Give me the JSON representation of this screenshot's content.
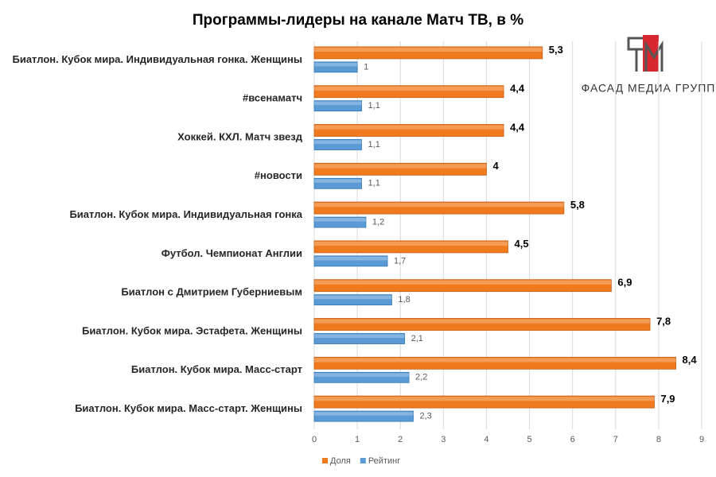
{
  "chart_data": {
    "type": "hbar",
    "title": "Программы-лидеры на канале Матч ТВ, в %",
    "logo": "ФАСАД МЕДИА ГРУПП",
    "categories": [
      "Биатлон. Кубок мира. Индивидуальная гонка. Женщины",
      "#всенаматч",
      "Хоккей. КХЛ. Матч звезд",
      "#новости",
      "Биатлон. Кубок мира. Индивидуальная гонка",
      "Футбол. Чемпионат Англии",
      "Биатлон с Дмитрием Губерниевым",
      "Биатлон. Кубок мира. Эстафета. Женщины",
      "Биатлон. Кубок мира. Масс-старт",
      "Биатлон. Кубок мира. Масс-старт. Женщины"
    ],
    "series": [
      {
        "name": "Доля",
        "color": "#f07a1e",
        "values": [
          5.3,
          4.4,
          4.4,
          4,
          5.8,
          4.5,
          6.9,
          7.8,
          8.4,
          7.9
        ],
        "value_labels": [
          "5,3",
          "4,4",
          "4,4",
          "4",
          "5,8",
          "4,5",
          "6,9",
          "7,8",
          "8,4",
          "7,9"
        ]
      },
      {
        "name": "Рейтинг",
        "color": "#5b9bd5",
        "values": [
          1,
          1.1,
          1.1,
          1.1,
          1.2,
          1.7,
          1.8,
          2.1,
          2.2,
          2.3
        ],
        "value_labels": [
          "1",
          "1,1",
          "1,1",
          "1,1",
          "1,2",
          "1,7",
          "1,8",
          "2,1",
          "2,2",
          "2,3"
        ]
      }
    ],
    "xlim": [
      0,
      9
    ],
    "xticks": [
      0,
      1,
      2,
      3,
      4,
      5,
      6,
      7,
      8,
      9
    ],
    "grid": true,
    "legend": "bottom"
  }
}
